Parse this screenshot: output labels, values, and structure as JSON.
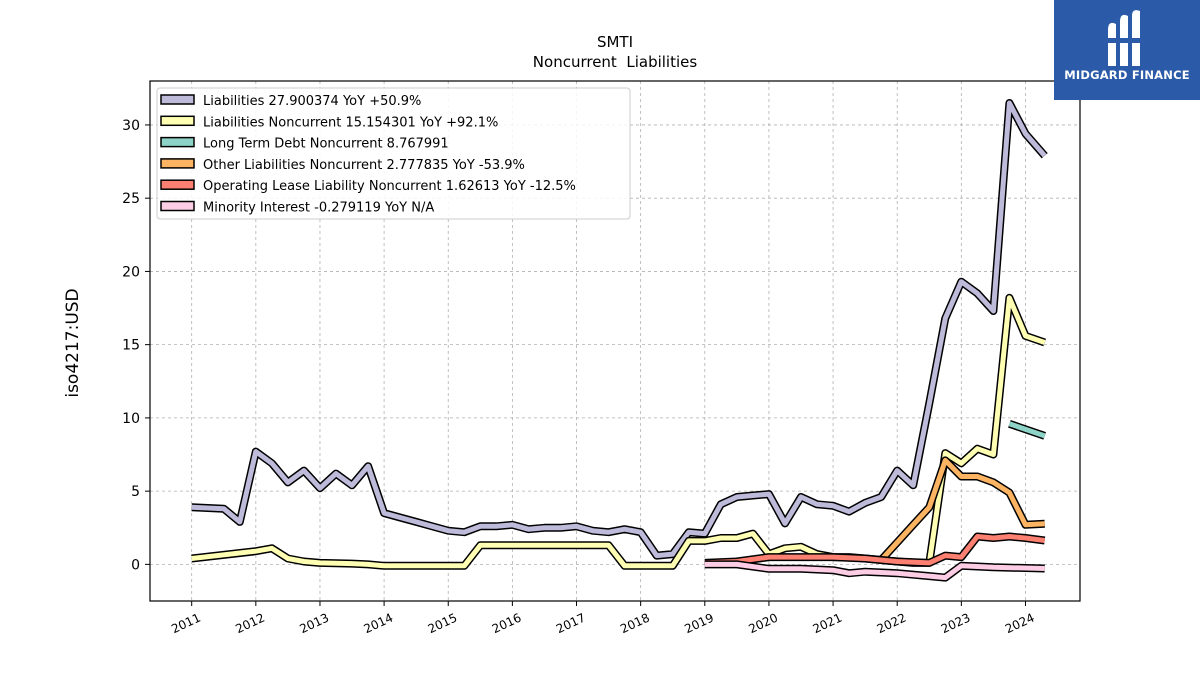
{
  "logo": {
    "text": "MIDGARD FINANCE"
  },
  "chart_data": {
    "type": "line",
    "title": "SMTI",
    "subtitle": "Noncurrent  Liabilities",
    "ylabel": "iso4217:USD",
    "xlabel": "",
    "xlim": [
      2010.35,
      2024.85
    ],
    "ylim": [
      -2.5,
      33
    ],
    "x_ticks": [
      2011,
      2012,
      2013,
      2014,
      2015,
      2016,
      2017,
      2018,
      2019,
      2020,
      2021,
      2022,
      2023,
      2024
    ],
    "x_tick_labels": [
      "2011",
      "2012",
      "2013",
      "2014",
      "2015",
      "2016",
      "2017",
      "2018",
      "2019",
      "2020",
      "2021",
      "2022",
      "2023",
      "2024"
    ],
    "y_ticks": [
      0,
      5,
      10,
      15,
      20,
      25,
      30
    ],
    "y_tick_labels": [
      "0",
      "5",
      "10",
      "15",
      "20",
      "25",
      "30"
    ],
    "grid": true,
    "legend_position": "upper-left",
    "series": [
      {
        "name": "Liabilities",
        "legend_label": "Liabilities  27.900374 YoY +50.9%",
        "color": "#bebada",
        "x": [
          2011.0,
          2011.5,
          2011.75,
          2012.0,
          2012.25,
          2012.5,
          2012.75,
          2013.0,
          2013.25,
          2013.5,
          2013.75,
          2014.0,
          2014.25,
          2014.5,
          2014.75,
          2015.0,
          2015.25,
          2015.5,
          2015.75,
          2016.0,
          2016.25,
          2016.5,
          2016.75,
          2017.0,
          2017.25,
          2017.5,
          2017.75,
          2018.0,
          2018.25,
          2018.5,
          2018.75,
          2019.0,
          2019.25,
          2019.5,
          2019.75,
          2020.0,
          2020.25,
          2020.5,
          2020.75,
          2021.0,
          2021.25,
          2021.5,
          2021.75,
          2022.0,
          2022.25,
          2022.5,
          2022.75,
          2023.0,
          2023.25,
          2023.5,
          2023.75,
          2024.0,
          2024.3
        ],
        "y": [
          3.9,
          3.8,
          2.9,
          7.7,
          6.9,
          5.6,
          6.4,
          5.2,
          6.2,
          5.4,
          6.7,
          3.5,
          3.2,
          2.9,
          2.6,
          2.3,
          2.2,
          2.6,
          2.6,
          2.7,
          2.4,
          2.5,
          2.5,
          2.6,
          2.3,
          2.2,
          2.4,
          2.2,
          0.6,
          0.7,
          2.2,
          2.1,
          4.1,
          4.6,
          4.7,
          4.8,
          2.8,
          4.6,
          4.1,
          4.0,
          3.6,
          4.2,
          4.6,
          6.4,
          5.4,
          11.0,
          16.8,
          19.3,
          18.5,
          17.3,
          31.5,
          29.4,
          27.9
        ]
      },
      {
        "name": "Liabilities Noncurrent",
        "legend_label": "Liabilities Noncurrent  15.154301 YoY +92.1%",
        "color": "#ffffb3",
        "x": [
          2011.0,
          2012.0,
          2012.25,
          2012.5,
          2012.75,
          2013.0,
          2013.5,
          2013.75,
          2014.0,
          2014.25,
          2014.5,
          2014.75,
          2015.0,
          2015.25,
          2015.5,
          2015.75,
          2016.0,
          2016.25,
          2016.5,
          2016.75,
          2017.0,
          2017.25,
          2017.5,
          2017.75,
          2018.0,
          2018.25,
          2018.5,
          2018.75,
          2019.0,
          2019.25,
          2019.5,
          2019.75,
          2020.0,
          2020.25,
          2020.5,
          2020.75,
          2021.0,
          2021.25,
          2021.5,
          2021.75,
          2022.0,
          2022.25,
          2022.5,
          2022.75,
          2023.0,
          2023.25,
          2023.5,
          2023.75,
          2024.0,
          2024.3
        ],
        "y": [
          0.4,
          0.9,
          1.1,
          0.4,
          0.2,
          0.1,
          0.05,
          0.0,
          -0.1,
          -0.1,
          -0.1,
          -0.1,
          -0.1,
          -0.1,
          1.3,
          1.3,
          1.3,
          1.3,
          1.3,
          1.3,
          1.3,
          1.3,
          1.3,
          -0.1,
          -0.1,
          -0.1,
          -0.1,
          1.6,
          1.6,
          1.8,
          1.8,
          2.1,
          0.7,
          1.1,
          1.2,
          0.7,
          0.5,
          0.5,
          0.4,
          0.3,
          0.2,
          0.1,
          0.1,
          7.6,
          6.9,
          7.9,
          7.5,
          18.2,
          15.6,
          15.15
        ]
      },
      {
        "name": "Long Term Debt Noncurrent",
        "legend_label": "Long Term Debt Noncurrent  8.767991",
        "color": "#8dd3c7",
        "x": [
          2023.75,
          2024.3
        ],
        "y": [
          9.6,
          8.77
        ]
      },
      {
        "name": "Other Liabilities Noncurrent",
        "legend_label": "Other Liabilities Noncurrent  2.777835 YoY -53.9%",
        "color": "#fdb462",
        "x": [
          2021.75,
          2022.0,
          2022.25,
          2022.5,
          2022.75,
          2023.0,
          2023.25,
          2023.5,
          2023.75,
          2024.0,
          2024.3
        ],
        "y": [
          0.3,
          1.5,
          2.7,
          3.9,
          7.1,
          6.0,
          6.0,
          5.6,
          4.9,
          2.7,
          2.78
        ]
      },
      {
        "name": "Operating Lease Liability Noncurrent",
        "legend_label": "Operating Lease Liability Noncurrent  1.62613 YoY -12.5%",
        "color": "#fb8072",
        "x": [
          2019.0,
          2019.5,
          2020.0,
          2020.5,
          2021.0,
          2021.5,
          2022.0,
          2022.5,
          2022.75,
          2023.0,
          2023.25,
          2023.5,
          2023.75,
          2024.0,
          2024.3
        ],
        "y": [
          0.1,
          0.2,
          0.5,
          0.5,
          0.5,
          0.4,
          0.2,
          0.1,
          0.6,
          0.5,
          1.9,
          1.8,
          1.9,
          1.8,
          1.63
        ]
      },
      {
        "name": "Minority Interest",
        "legend_label": "Minority Interest  -0.279119 YoY N/A",
        "color": "#fccde5",
        "x": [
          2019.0,
          2019.5,
          2020.0,
          2020.5,
          2021.0,
          2021.25,
          2021.5,
          2022.0,
          2022.5,
          2022.75,
          2023.0,
          2023.5,
          2024.0,
          2024.3
        ],
        "y": [
          0.0,
          0.0,
          -0.3,
          -0.3,
          -0.4,
          -0.6,
          -0.5,
          -0.6,
          -0.8,
          -0.9,
          -0.1,
          -0.2,
          -0.25,
          -0.28
        ]
      }
    ]
  }
}
